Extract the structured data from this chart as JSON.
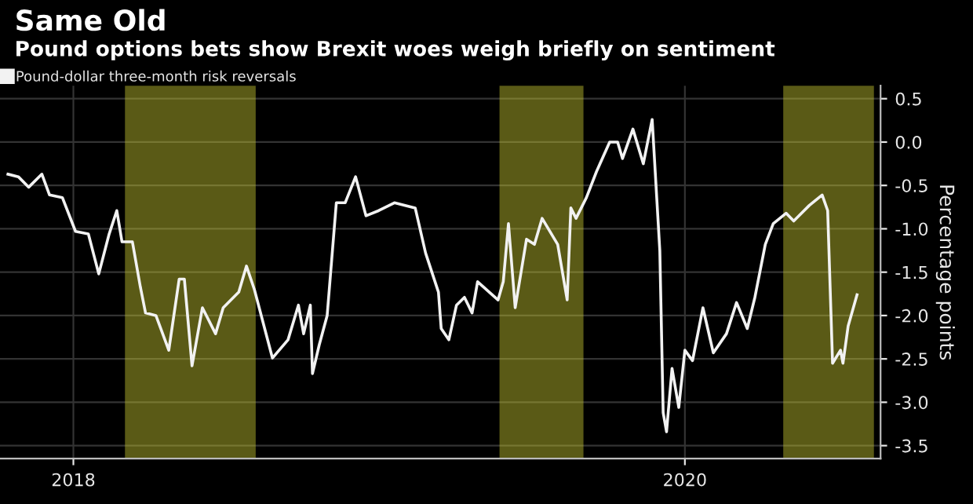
{
  "chart_data": {
    "type": "line",
    "title": "Same Old",
    "subtitle": "Pound options bets show Brexit woes weigh briefly on sentiment",
    "ylabel": "Percentage points",
    "xlim": [
      2018.26,
      2021.14
    ],
    "xticks": [
      {
        "value": 2018.5,
        "label": "2018"
      },
      {
        "value": 2020.5,
        "label": "2020"
      }
    ],
    "ylim": [
      -3.65,
      0.65
    ],
    "yticks": [
      {
        "value": 0.5,
        "label": "0.5"
      },
      {
        "value": 0.0,
        "label": "0.0"
      },
      {
        "value": -0.5,
        "label": "-0.5"
      },
      {
        "value": -1.0,
        "label": "-1.0"
      },
      {
        "value": -1.5,
        "label": "-1.5"
      },
      {
        "value": -2.0,
        "label": "-2.0"
      },
      {
        "value": -2.5,
        "label": "-2.5"
      },
      {
        "value": -3.0,
        "label": "-3.0"
      },
      {
        "value": -3.5,
        "label": "-3.5"
      }
    ],
    "grid": true,
    "legend": "top left",
    "series": [
      {
        "name": "Pound-dollar three-month risk reversals",
        "color": "#f2f2f2",
        "x": [
          2018.286,
          2018.32,
          2018.354,
          2018.397,
          2018.422,
          2018.464,
          2018.507,
          2018.549,
          2018.583,
          2018.617,
          2018.642,
          2018.659,
          2018.693,
          2018.719,
          2018.736,
          2018.77,
          2018.812,
          2018.846,
          2018.863,
          2018.888,
          2018.922,
          2018.965,
          2018.99,
          2019.041,
          2019.066,
          2019.092,
          2019.151,
          2019.202,
          2019.236,
          2019.253,
          2019.275,
          2019.282,
          2019.304,
          2019.33,
          2019.36,
          2019.389,
          2019.423,
          2019.457,
          2019.499,
          2019.55,
          2019.618,
          2019.652,
          2019.694,
          2019.703,
          2019.728,
          2019.753,
          2019.779,
          2019.804,
          2019.822,
          2019.889,
          2019.906,
          2019.923,
          2019.945,
          2019.982,
          2020.008,
          2020.033,
          2020.084,
          2020.115,
          2020.127,
          2020.144,
          2020.178,
          2020.211,
          2020.254,
          2020.28,
          2020.296,
          2020.33,
          2020.364,
          2020.393,
          2020.418,
          2020.429,
          2020.44,
          2020.458,
          2020.48,
          2020.5,
          2020.525,
          2020.559,
          2020.593,
          2020.636,
          2020.669,
          2020.704,
          2020.729,
          2020.763,
          2020.789,
          2020.831,
          2020.856,
          2020.907,
          2020.949,
          2020.967,
          2020.983,
          2021.009,
          2021.017,
          2021.034,
          2021.063
        ],
        "values": [
          -0.37,
          -0.4,
          -0.52,
          -0.37,
          -0.61,
          -0.64,
          -1.03,
          -1.06,
          -1.52,
          -1.06,
          -0.79,
          -1.15,
          -1.15,
          -1.67,
          -1.97,
          -2.0,
          -2.4,
          -1.58,
          -1.58,
          -2.58,
          -1.91,
          -2.21,
          -1.91,
          -1.73,
          -1.43,
          -1.7,
          -2.49,
          -2.28,
          -1.88,
          -2.21,
          -1.88,
          -2.67,
          -2.34,
          -2.0,
          -0.7,
          -0.7,
          -0.4,
          -0.85,
          -0.79,
          -0.7,
          -0.76,
          -1.28,
          -1.73,
          -2.15,
          -2.28,
          -1.88,
          -1.79,
          -1.97,
          -1.61,
          -1.82,
          -1.61,
          -0.94,
          -1.91,
          -1.12,
          -1.18,
          -0.88,
          -1.18,
          -1.82,
          -0.76,
          -0.88,
          -0.64,
          -0.34,
          0.0,
          0.0,
          -0.19,
          0.15,
          -0.25,
          0.26,
          -1.25,
          -3.12,
          -3.34,
          -2.61,
          -3.06,
          -2.4,
          -2.52,
          -1.91,
          -2.43,
          -2.21,
          -1.85,
          -2.15,
          -1.79,
          -1.18,
          -0.94,
          -0.82,
          -0.91,
          -0.73,
          -0.61,
          -0.79,
          -2.55,
          -2.4,
          -2.55,
          -2.12,
          -1.76
        ]
      }
    ],
    "bands": [
      {
        "axis": "x",
        "from": 2018.673,
        "to": 2019.092,
        "color": "#c8c832"
      },
      {
        "axis": "x",
        "from": 2019.898,
        "to": 2020.164,
        "color": "#c8c832"
      },
      {
        "axis": "x",
        "from": 2020.826,
        "to": 2021.114,
        "color": "#c8c832"
      }
    ]
  }
}
